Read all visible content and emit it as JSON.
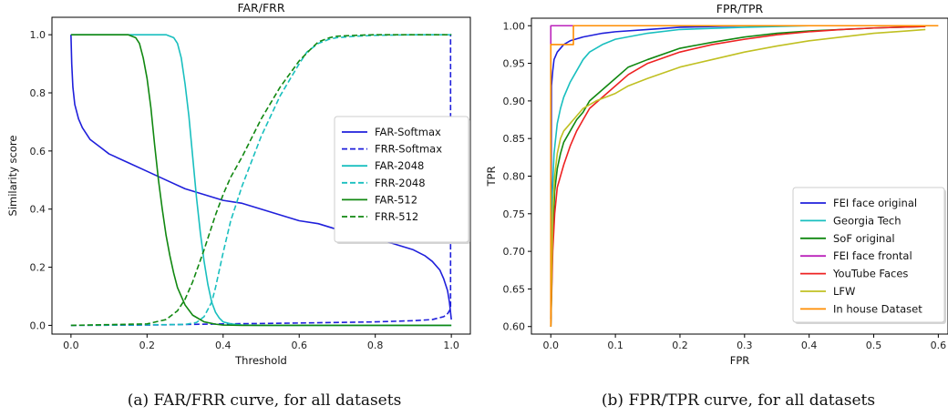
{
  "chart_data": [
    {
      "type": "line",
      "title": "FAR/FRR",
      "xlabel": "Threshold",
      "ylabel": "Similarity score",
      "xlim": [
        -0.05,
        1.05
      ],
      "ylim": [
        -0.03,
        1.06
      ],
      "xticks": [
        0.0,
        0.2,
        0.4,
        0.6,
        0.8,
        1.0
      ],
      "yticks": [
        0.0,
        0.2,
        0.4,
        0.6,
        0.8,
        1.0
      ],
      "xtick_labels": [
        "0.0",
        "0.2",
        "0.4",
        "0.6",
        "0.8",
        "1.0"
      ],
      "ytick_labels": [
        "0.0",
        "0.2",
        "0.4",
        "0.6",
        "0.8",
        "1.0"
      ],
      "grid": false,
      "legend_position": "center-right",
      "caption": "(a) FAR/FRR curve, for all datasets",
      "series": [
        {
          "name": "FAR-Softmax",
          "color": "#1f1fdb",
          "dash": "solid",
          "x": [
            0.0,
            0.002,
            0.005,
            0.01,
            0.02,
            0.03,
            0.05,
            0.08,
            0.1,
            0.15,
            0.2,
            0.25,
            0.3,
            0.35,
            0.4,
            0.45,
            0.5,
            0.55,
            0.6,
            0.65,
            0.7,
            0.75,
            0.8,
            0.85,
            0.9,
            0.93,
            0.95,
            0.97,
            0.98,
            0.99,
            0.995,
            1.0
          ],
          "y": [
            1.0,
            0.9,
            0.82,
            0.76,
            0.71,
            0.68,
            0.64,
            0.61,
            0.59,
            0.56,
            0.53,
            0.5,
            0.47,
            0.45,
            0.43,
            0.42,
            0.4,
            0.38,
            0.36,
            0.35,
            0.33,
            0.32,
            0.3,
            0.28,
            0.26,
            0.24,
            0.22,
            0.19,
            0.16,
            0.12,
            0.08,
            0.02
          ]
        },
        {
          "name": "FRR-Softmax",
          "color": "#1f1fdb",
          "dash": "dashed",
          "x": [
            0.0,
            0.2,
            0.3,
            0.4,
            0.6,
            0.8,
            0.9,
            0.95,
            0.98,
            0.99,
            0.995,
            0.998,
            0.998,
            1.0
          ],
          "y": [
            0.0,
            0.001,
            0.003,
            0.005,
            0.008,
            0.012,
            0.016,
            0.02,
            0.03,
            0.04,
            0.05,
            0.06,
            1.0,
            1.0
          ]
        },
        {
          "name": "FAR-2048",
          "color": "#19bfbf",
          "dash": "solid",
          "x": [
            0.0,
            0.25,
            0.27,
            0.28,
            0.29,
            0.3,
            0.31,
            0.32,
            0.33,
            0.34,
            0.35,
            0.36,
            0.37,
            0.38,
            0.39,
            0.4,
            0.42,
            0.45,
            0.5,
            1.0
          ],
          "y": [
            1.0,
            1.0,
            0.99,
            0.97,
            0.92,
            0.83,
            0.72,
            0.58,
            0.44,
            0.32,
            0.22,
            0.14,
            0.08,
            0.045,
            0.025,
            0.012,
            0.005,
            0.001,
            0.0,
            0.0
          ]
        },
        {
          "name": "FRR-2048",
          "color": "#19bfbf",
          "dash": "dashed",
          "x": [
            0.0,
            0.3,
            0.33,
            0.35,
            0.37,
            0.38,
            0.4,
            0.42,
            0.45,
            0.5,
            0.55,
            0.6,
            0.62,
            0.65,
            0.68,
            0.7,
            0.75,
            0.8,
            0.9,
            1.0
          ],
          "y": [
            0.0,
            0.003,
            0.01,
            0.03,
            0.08,
            0.13,
            0.25,
            0.36,
            0.48,
            0.65,
            0.79,
            0.9,
            0.94,
            0.97,
            0.985,
            0.99,
            0.995,
            0.998,
            1.0,
            1.0
          ]
        },
        {
          "name": "FAR-512",
          "color": "#118811",
          "dash": "solid",
          "x": [
            0.0,
            0.15,
            0.17,
            0.18,
            0.19,
            0.2,
            0.21,
            0.22,
            0.23,
            0.24,
            0.25,
            0.26,
            0.27,
            0.28,
            0.3,
            0.32,
            0.35,
            0.38,
            0.4,
            0.45,
            1.0
          ],
          "y": [
            1.0,
            1.0,
            0.99,
            0.97,
            0.92,
            0.85,
            0.75,
            0.62,
            0.5,
            0.4,
            0.31,
            0.24,
            0.18,
            0.13,
            0.07,
            0.035,
            0.012,
            0.004,
            0.001,
            0.0,
            0.0
          ]
        },
        {
          "name": "FRR-512",
          "color": "#118811",
          "dash": "dashed",
          "x": [
            0.0,
            0.2,
            0.25,
            0.28,
            0.3,
            0.32,
            0.35,
            0.38,
            0.4,
            0.42,
            0.45,
            0.5,
            0.55,
            0.6,
            0.63,
            0.65,
            0.68,
            0.7,
            0.75,
            0.8,
            1.0
          ],
          "y": [
            0.0,
            0.005,
            0.02,
            0.05,
            0.09,
            0.15,
            0.26,
            0.38,
            0.45,
            0.51,
            0.58,
            0.71,
            0.82,
            0.91,
            0.95,
            0.975,
            0.99,
            0.995,
            0.998,
            1.0,
            1.0
          ]
        }
      ]
    },
    {
      "type": "line",
      "title": "FPR/TPR",
      "xlabel": "FPR",
      "ylabel": "TPR",
      "xlim": [
        -0.03,
        0.615
      ],
      "ylim": [
        0.59,
        1.01
      ],
      "xticks": [
        0.0,
        0.1,
        0.2,
        0.3,
        0.4,
        0.5,
        0.6
      ],
      "yticks": [
        0.6,
        0.65,
        0.7,
        0.75,
        0.8,
        0.85,
        0.9,
        0.95,
        1.0
      ],
      "xtick_labels": [
        "0.0",
        "0.1",
        "0.2",
        "0.3",
        "0.4",
        "0.5",
        "0.6"
      ],
      "ytick_labels": [
        "0.60",
        "0.65",
        "0.70",
        "0.75",
        "0.80",
        "0.85",
        "0.90",
        "0.95",
        "1.00"
      ],
      "grid": false,
      "legend_position": "lower-right",
      "caption": "(b) FPR/TPR curve, for all datasets",
      "series": [
        {
          "name": "FEI face original",
          "color": "#1f1fdb",
          "x": [
            0.0,
            0.001,
            0.003,
            0.005,
            0.01,
            0.02,
            0.03,
            0.05,
            0.08,
            0.1,
            0.15,
            0.2,
            0.3,
            0.4,
            0.5,
            0.58
          ],
          "y": [
            0.61,
            0.92,
            0.94,
            0.955,
            0.965,
            0.975,
            0.98,
            0.985,
            0.99,
            0.992,
            0.995,
            0.998,
            1.0,
            1.0,
            1.0,
            1.0
          ]
        },
        {
          "name": "Georgia Tech",
          "color": "#19bfbf",
          "x": [
            0.0,
            0.002,
            0.005,
            0.01,
            0.015,
            0.02,
            0.03,
            0.04,
            0.05,
            0.06,
            0.08,
            0.1,
            0.15,
            0.2,
            0.3,
            0.4,
            0.5,
            0.59
          ],
          "y": [
            0.61,
            0.77,
            0.83,
            0.87,
            0.89,
            0.905,
            0.925,
            0.94,
            0.955,
            0.965,
            0.975,
            0.982,
            0.99,
            0.995,
            0.998,
            1.0,
            1.0,
            1.0
          ]
        },
        {
          "name": "SoF original",
          "color": "#118811",
          "x": [
            0.0,
            0.003,
            0.006,
            0.01,
            0.015,
            0.02,
            0.03,
            0.04,
            0.05,
            0.06,
            0.08,
            0.1,
            0.12,
            0.15,
            0.2,
            0.25,
            0.3,
            0.35,
            0.4,
            0.45,
            0.5,
            0.58
          ],
          "y": [
            0.6,
            0.72,
            0.78,
            0.81,
            0.83,
            0.845,
            0.86,
            0.875,
            0.885,
            0.9,
            0.915,
            0.93,
            0.945,
            0.955,
            0.97,
            0.978,
            0.985,
            0.99,
            0.993,
            0.995,
            0.997,
            0.999
          ]
        },
        {
          "name": "FEI face frontal",
          "color": "#bb22bb",
          "x": [
            0.0,
            0.0,
            0.035,
            0.035,
            0.58
          ],
          "y": [
            0.975,
            1.0,
            1.0,
            1.0,
            1.0
          ]
        },
        {
          "name": "YouTube Faces",
          "color": "#ee2222",
          "x": [
            0.0,
            0.003,
            0.006,
            0.01,
            0.015,
            0.02,
            0.03,
            0.04,
            0.05,
            0.06,
            0.08,
            0.1,
            0.12,
            0.15,
            0.2,
            0.25,
            0.3,
            0.35,
            0.4,
            0.45,
            0.5,
            0.58
          ],
          "y": [
            0.6,
            0.7,
            0.75,
            0.785,
            0.8,
            0.815,
            0.84,
            0.86,
            0.875,
            0.89,
            0.905,
            0.92,
            0.935,
            0.95,
            0.965,
            0.975,
            0.982,
            0.988,
            0.992,
            0.995,
            0.997,
            0.999
          ]
        },
        {
          "name": "LFW",
          "color": "#c0c022",
          "x": [
            0.0,
            0.003,
            0.006,
            0.01,
            0.015,
            0.02,
            0.03,
            0.04,
            0.05,
            0.07,
            0.1,
            0.12,
            0.15,
            0.2,
            0.25,
            0.3,
            0.35,
            0.4,
            0.45,
            0.5,
            0.55,
            0.58
          ],
          "y": [
            0.6,
            0.75,
            0.8,
            0.83,
            0.85,
            0.86,
            0.87,
            0.88,
            0.89,
            0.9,
            0.91,
            0.92,
            0.93,
            0.945,
            0.955,
            0.965,
            0.973,
            0.98,
            0.985,
            0.99,
            0.993,
            0.995
          ]
        },
        {
          "name": "In house Dataset",
          "color": "#ff8c00",
          "x": [
            0.0,
            0.0,
            0.035,
            0.035,
            0.6
          ],
          "y": [
            0.6,
            0.975,
            0.975,
            1.0,
            1.0
          ]
        }
      ]
    }
  ]
}
